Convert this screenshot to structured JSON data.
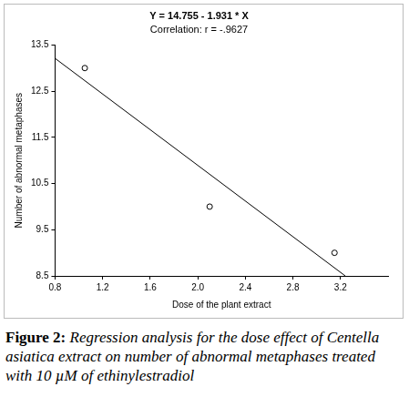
{
  "chart_data": {
    "type": "scatter",
    "title": "Y = 14.755 - 1.931 * X",
    "subtitle": "Correlation: r = -.9627",
    "x_label": "Dose of the plant extract",
    "y_label": "Number of abnormal metaphases",
    "xlim": [
      0.8,
      3.6
    ],
    "xticks": [
      0.8,
      1.2,
      1.6,
      {
        "value": 2,
        "label": "2.0"
      },
      2.4,
      2.8,
      3.2
    ],
    "ylim": [
      8.5,
      13.5
    ],
    "yticks": [
      8.5,
      9.5,
      10.5,
      11.5,
      12.5,
      13.5
    ],
    "grid": false,
    "series": [
      {
        "type": "scatter",
        "marker": "circle",
        "color": "#000000",
        "x": [
          1.05,
          2.1,
          3.15
        ],
        "values": [
          13,
          10,
          9
        ]
      },
      {
        "type": "line",
        "line_style": "solid",
        "color": "#000000",
        "x": [
          0.8,
          3.24
        ],
        "values": [
          13.21,
          8.5
        ]
      }
    ]
  },
  "caption": {
    "label": "Figure 2:",
    "text": "Regression analysis for the dose effect of Centella asiatica extract on number of abnormal metaphases treated with 10 µM of ethinylestradiol"
  }
}
